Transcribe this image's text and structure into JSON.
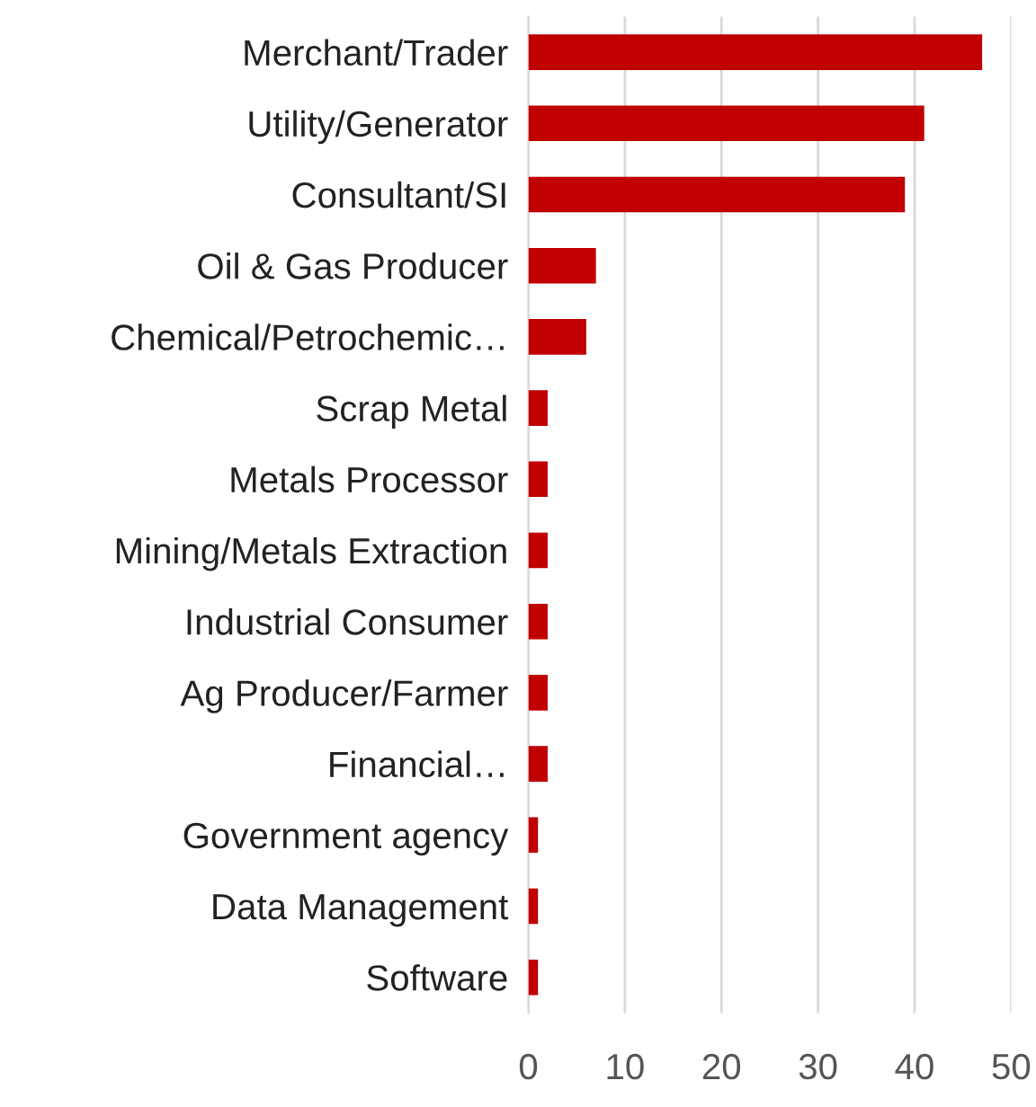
{
  "chart_data": {
    "type": "bar",
    "orientation": "horizontal",
    "categories": [
      "Merchant/Trader",
      "Utility/Generator",
      "Consultant/SI",
      "Oil & Gas Producer",
      "Chemical/Petrochemic…",
      "Scrap Metal",
      "Metals Processor",
      "Mining/Metals Extraction",
      "Industrial Consumer",
      "Ag Producer/Farmer",
      "Financial…",
      "Government agency",
      "Data Management",
      "Software"
    ],
    "values": [
      47,
      41,
      39,
      7,
      6,
      2,
      2,
      2,
      2,
      2,
      2,
      1,
      1,
      1
    ],
    "color": "#c00000",
    "xlim": [
      0,
      50
    ],
    "xticks": [
      0,
      10,
      20,
      30,
      40,
      50
    ],
    "grid": "x"
  }
}
